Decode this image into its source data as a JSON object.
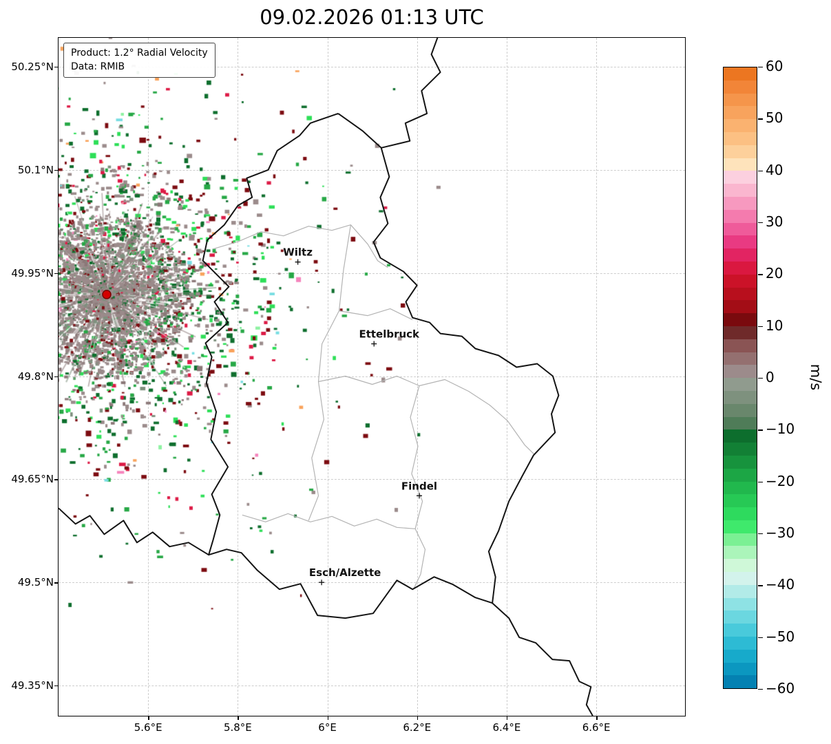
{
  "title": "09.02.2026 01:13 UTC",
  "legend": {
    "line1": "Product: 1.2° Radial Velocity",
    "line2": "Data: RMIB"
  },
  "chart_data": {
    "type": "heatmap",
    "subtype": "radar-ppi-map",
    "description": "Doppler weather radar 1.2 degree radial velocity scan over Luxembourg region; echoes cluster around the radar site in south-east Belgium",
    "grid": true,
    "legend_position": "upper left",
    "axes": {
      "lon_min": 5.4,
      "lon_max": 6.798,
      "lat_min": 49.306,
      "lat_max": 50.292
    },
    "x_ticks": [
      {
        "v": 5.6,
        "label": "5.6°E"
      },
      {
        "v": 5.8,
        "label": "5.8°E"
      },
      {
        "v": 6.0,
        "label": "6°E"
      },
      {
        "v": 6.2,
        "label": "6.2°E"
      },
      {
        "v": 6.4,
        "label": "6.4°E"
      },
      {
        "v": 6.6,
        "label": "6.6°E"
      }
    ],
    "y_ticks": [
      {
        "v": 50.25,
        "label": "50.25°N"
      },
      {
        "v": 50.1,
        "label": "50.1°N"
      },
      {
        "v": 49.95,
        "label": "49.95°N"
      },
      {
        "v": 49.8,
        "label": "49.8°N"
      },
      {
        "v": 49.65,
        "label": "49.65°N"
      },
      {
        "v": 49.5,
        "label": "49.5°N"
      },
      {
        "v": 49.35,
        "label": "49.35°N"
      }
    ],
    "cities": [
      {
        "name": "Wiltz",
        "lon": 5.934,
        "lat": 49.966,
        "label_dx": 0
      },
      {
        "name": "Ettelbruck",
        "lon": 6.104,
        "lat": 49.847,
        "label_dx": 22
      },
      {
        "name": "Findel",
        "lon": 6.205,
        "lat": 49.626,
        "label_dx": 0
      },
      {
        "name": "Esch/Alzette",
        "lon": 5.987,
        "lat": 49.5,
        "label_dx": 34
      }
    ],
    "radar_site": {
      "lon": 5.5075,
      "lat": 49.9187
    },
    "colorbar": {
      "label": "m/s",
      "vmin": -60,
      "vmax": 60,
      "ticks": [
        60,
        50,
        40,
        30,
        20,
        10,
        0,
        -10,
        -20,
        -30,
        -40,
        -50,
        -60
      ],
      "segments": [
        "#ec7621",
        "#f28538",
        "#f5954b",
        "#f8a35d",
        "#fab270",
        "#fcc083",
        "#fdd09b",
        "#fee3bb",
        "#fcd0df",
        "#fab6cf",
        "#f799bf",
        "#f47bae",
        "#ef5b9a",
        "#e93a82",
        "#e22462",
        "#da1840",
        "#cb1228",
        "#b80f1d",
        "#a30d16",
        "#7a0a0e",
        "#6f2a2a",
        "#8a5454",
        "#947070",
        "#9c8b8b",
        "#909b8e",
        "#7e917e",
        "#69876c",
        "#4f7c58",
        "#0d6e2d",
        "#128035",
        "#17933d",
        "#1ca645",
        "#21b84d",
        "#27c955",
        "#2eda5e",
        "#3fe96c",
        "#7bf094",
        "#abf5ba",
        "#cff8d8",
        "#d3f3ec",
        "#b2ebe8",
        "#8ee2e4",
        "#6bd7e0",
        "#49cadb",
        "#2dbbd4",
        "#17aacb",
        "#0b97c0",
        "#0481b2"
      ]
    },
    "borders": {
      "country": [
        [
          [
            6.25,
            50.3
          ],
          [
            6.232,
            50.268
          ],
          [
            6.252,
            50.242
          ],
          [
            6.21,
            50.215
          ],
          [
            6.222,
            50.182
          ],
          [
            6.174,
            50.168
          ],
          [
            6.184,
            50.142
          ],
          [
            6.12,
            50.132
          ]
        ],
        [
          [
            6.024,
            50.182
          ],
          [
            6.078,
            50.157
          ],
          [
            6.12,
            50.132
          ],
          [
            6.138,
            50.09
          ],
          [
            6.118,
            50.06
          ],
          [
            6.135,
            50.022
          ],
          [
            6.103,
            49.995
          ],
          [
            6.118,
            49.972
          ],
          [
            6.17,
            49.952
          ],
          [
            6.2,
            49.932
          ],
          [
            6.175,
            49.908
          ],
          [
            6.19,
            49.885
          ],
          [
            6.228,
            49.878
          ],
          [
            6.252,
            49.862
          ],
          [
            6.3,
            49.858
          ],
          [
            6.33,
            49.84
          ],
          [
            6.382,
            49.83
          ],
          [
            6.422,
            49.813
          ],
          [
            6.468,
            49.818
          ],
          [
            6.503,
            49.8
          ],
          [
            6.516,
            49.772
          ],
          [
            6.5,
            49.745
          ],
          [
            6.508,
            49.718
          ],
          [
            6.46,
            49.685
          ],
          [
            6.435,
            49.655
          ],
          [
            6.405,
            49.618
          ],
          [
            6.382,
            49.575
          ],
          [
            6.36,
            49.545
          ],
          [
            6.375,
            49.508
          ],
          [
            6.368,
            49.47
          ],
          [
            6.33,
            49.478
          ],
          [
            6.28,
            49.497
          ],
          [
            6.238,
            49.508
          ],
          [
            6.19,
            49.49
          ],
          [
            6.155,
            49.503
          ],
          [
            6.102,
            49.455
          ],
          [
            6.04,
            49.448
          ],
          [
            5.978,
            49.452
          ],
          [
            5.94,
            49.498
          ],
          [
            5.893,
            49.49
          ],
          [
            5.843,
            49.518
          ],
          [
            5.808,
            49.543
          ],
          [
            5.775,
            49.548
          ],
          [
            5.735,
            49.54
          ],
          [
            5.745,
            49.562
          ],
          [
            5.76,
            49.598
          ],
          [
            5.742,
            49.628
          ],
          [
            5.778,
            49.668
          ],
          [
            5.74,
            49.708
          ],
          [
            5.752,
            49.748
          ],
          [
            5.73,
            49.79
          ],
          [
            5.742,
            49.828
          ],
          [
            5.728,
            49.848
          ],
          [
            5.778,
            49.878
          ],
          [
            5.748,
            49.908
          ],
          [
            5.78,
            49.93
          ],
          [
            5.722,
            49.968
          ],
          [
            5.732,
            49.998
          ],
          [
            5.77,
            50.02
          ],
          [
            5.8,
            50.048
          ],
          [
            5.832,
            50.06
          ],
          [
            5.82,
            50.088
          ],
          [
            5.868,
            50.1
          ],
          [
            5.888,
            50.128
          ],
          [
            5.938,
            50.15
          ],
          [
            5.962,
            50.168
          ],
          [
            6.024,
            50.182
          ]
        ],
        [
          [
            5.4,
            49.608
          ],
          [
            5.438,
            49.585
          ],
          [
            5.47,
            49.597
          ],
          [
            5.502,
            49.57
          ],
          [
            5.545,
            49.59
          ],
          [
            5.575,
            49.558
          ],
          [
            5.61,
            49.573
          ],
          [
            5.648,
            49.552
          ],
          [
            5.69,
            49.558
          ],
          [
            5.735,
            49.54
          ]
        ],
        [
          [
            6.368,
            49.47
          ],
          [
            6.405,
            49.448
          ],
          [
            6.428,
            49.42
          ],
          [
            6.465,
            49.412
          ],
          [
            6.502,
            49.388
          ],
          [
            6.54,
            49.386
          ],
          [
            6.562,
            49.356
          ],
          [
            6.588,
            49.348
          ],
          [
            6.578,
            49.322
          ],
          [
            6.592,
            49.306
          ]
        ]
      ],
      "districts": [
        [
          [
            5.745,
            49.985
          ],
          [
            5.802,
            49.996
          ],
          [
            5.852,
            50.01
          ],
          [
            5.902,
            50.004
          ],
          [
            5.958,
            50.018
          ],
          [
            6.01,
            50.012
          ],
          [
            6.052,
            50.02
          ],
          [
            6.09,
            49.992
          ],
          [
            6.112,
            49.968
          ],
          [
            6.135,
            49.958
          ]
        ],
        [
          [
            6.052,
            50.02
          ],
          [
            6.036,
            49.955
          ],
          [
            6.026,
            49.895
          ],
          [
            5.988,
            49.847
          ],
          [
            5.98,
            49.792
          ],
          [
            5.992,
            49.737
          ],
          [
            5.965,
            49.681
          ],
          [
            5.98,
            49.626
          ],
          [
            5.958,
            49.59
          ]
        ],
        [
          [
            6.026,
            49.895
          ],
          [
            6.09,
            49.888
          ],
          [
            6.14,
            49.898
          ],
          [
            6.19,
            49.882
          ]
        ],
        [
          [
            5.98,
            49.792
          ],
          [
            6.04,
            49.8
          ],
          [
            6.1,
            49.788
          ],
          [
            6.155,
            49.8
          ],
          [
            6.205,
            49.786
          ],
          [
            6.262,
            49.795
          ],
          [
            6.315,
            49.778
          ],
          [
            6.362,
            49.758
          ],
          [
            6.402,
            49.735
          ],
          [
            6.44,
            49.7
          ],
          [
            6.462,
            49.686
          ]
        ],
        [
          [
            6.205,
            49.786
          ],
          [
            6.185,
            49.74
          ],
          [
            6.202,
            49.698
          ],
          [
            6.188,
            49.658
          ],
          [
            6.212,
            49.618
          ],
          [
            6.196,
            49.578
          ],
          [
            6.218,
            49.548
          ],
          [
            6.208,
            49.512
          ],
          [
            6.192,
            49.49
          ]
        ],
        [
          [
            5.81,
            49.598
          ],
          [
            5.862,
            49.588
          ],
          [
            5.912,
            49.6
          ],
          [
            5.962,
            49.588
          ],
          [
            6.01,
            49.596
          ],
          [
            6.06,
            49.582
          ],
          [
            6.11,
            49.592
          ],
          [
            6.155,
            49.58
          ],
          [
            6.196,
            49.578
          ]
        ]
      ]
    },
    "radar_field": {
      "seed": 7,
      "palette": {
        "mauve": "#9b8b8b",
        "mauve2": "#8b7878",
        "graygreen": "#7e907e",
        "darkgreen": "#0e6e2d",
        "green": "#27a846",
        "brightgreen": "#2ddf57",
        "palegreen": "#8ef2a2",
        "darkred": "#7c0b10",
        "crimson": "#dd1a45",
        "pink": "#f584bc",
        "orange": "#f9a35b",
        "cyan": "#77dde2",
        "white": "#ffffff"
      },
      "rings": [
        {
          "r0": 0,
          "r1": 60,
          "count": 2300,
          "smin": 2,
          "smax": 5,
          "weights": [
            [
              "mauve",
              62
            ],
            [
              "graygreen",
              14
            ],
            [
              "mauve2",
              12
            ],
            [
              "darkred",
              5
            ],
            [
              "darkgreen",
              4
            ],
            [
              "green",
              2
            ],
            [
              "crimson",
              1
            ]
          ]
        },
        {
          "r0": 60,
          "r1": 118,
          "count": 1900,
          "smin": 2,
          "smax": 6,
          "weights": [
            [
              "mauve",
              48
            ],
            [
              "graygreen",
              12
            ],
            [
              "mauve2",
              10
            ],
            [
              "darkred",
              8
            ],
            [
              "darkgreen",
              10
            ],
            [
              "green",
              6
            ],
            [
              "brightgreen",
              3
            ],
            [
              "crimson",
              2
            ],
            [
              "pink",
              1
            ]
          ]
        },
        {
          "r0": 118,
          "r1": 190,
          "count": 800,
          "smin": 3,
          "smax": 6,
          "weights": [
            [
              "mauve",
              26
            ],
            [
              "mauve2",
              8
            ],
            [
              "darkgreen",
              20
            ],
            [
              "green",
              14
            ],
            [
              "brightgreen",
              9
            ],
            [
              "darkred",
              12
            ],
            [
              "crimson",
              5
            ],
            [
              "graygreen",
              3
            ],
            [
              "pink",
              1
            ],
            [
              "orange",
              1
            ],
            [
              "cyan",
              1
            ]
          ]
        },
        {
          "r0": 190,
          "r1": 270,
          "count": 430,
          "smin": 3,
          "smax": 7,
          "weights": [
            [
              "mauve",
              18
            ],
            [
              "darkgreen",
              24
            ],
            [
              "green",
              16
            ],
            [
              "brightgreen",
              11
            ],
            [
              "darkred",
              16
            ],
            [
              "crimson",
              7
            ],
            [
              "pink",
              3
            ],
            [
              "orange",
              2
            ],
            [
              "cyan",
              2
            ],
            [
              "palegreen",
              1
            ]
          ]
        },
        {
          "r0": 270,
          "r1": 430,
          "count": 200,
          "smin": 3,
          "smax": 6,
          "weights": [
            [
              "darkred",
              26
            ],
            [
              "crimson",
              9
            ],
            [
              "darkgreen",
              22
            ],
            [
              "green",
              14
            ],
            [
              "brightgreen",
              7
            ],
            [
              "mauve",
              16
            ],
            [
              "pink",
              3
            ],
            [
              "orange",
              2
            ],
            [
              "cyan",
              1
            ]
          ]
        },
        {
          "r0": 430,
          "r1": 530,
          "count": 22,
          "smin": 3,
          "smax": 6,
          "weights": [
            [
              "darkred",
              30
            ],
            [
              "darkgreen",
              30
            ],
            [
              "green",
              20
            ],
            [
              "mauve",
              20
            ]
          ]
        }
      ],
      "streaks": {
        "count": 240,
        "rmin": 6,
        "rmax": 115,
        "lmin": 12,
        "lmax": 50,
        "colors": [
          [
            "white",
            40
          ],
          [
            "mauve",
            30
          ],
          [
            "mauve2",
            18
          ],
          [
            "graygreen",
            12
          ]
        ]
      },
      "texture_count": 650,
      "site_dot": {
        "color": "#d40000",
        "edge": "#7a0000",
        "radius": 6
      }
    }
  }
}
